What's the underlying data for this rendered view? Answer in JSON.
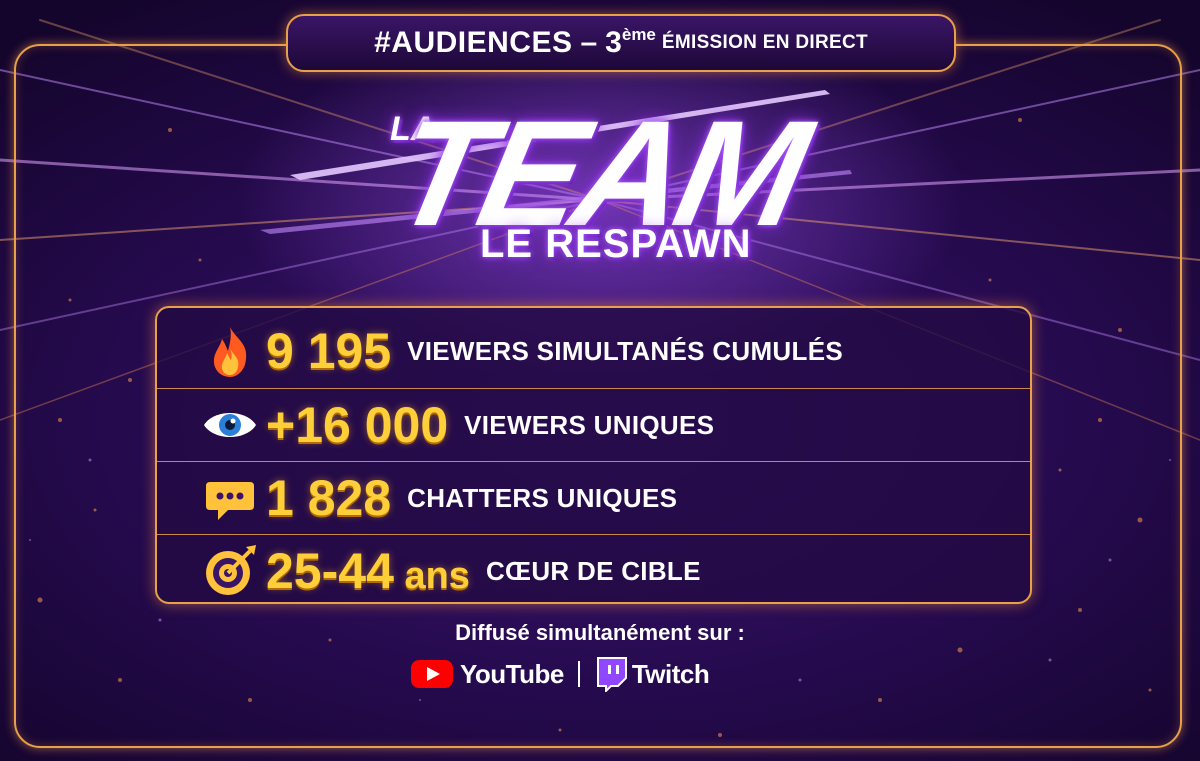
{
  "header": {
    "hashtag": "#AUDIENCES",
    "dash": "–",
    "episode_number": "3",
    "episode_suffix": "ème",
    "subtitle": "ÉMISSION EN DIRECT"
  },
  "logo": {
    "top_word": "LA",
    "main_word": "TEAM",
    "sub_word": "LE RESPAWN"
  },
  "stats": [
    {
      "icon": "fire-icon",
      "value": "9 195",
      "unit": "",
      "label": "VIEWERS SIMULTANÉS CUMULÉS"
    },
    {
      "icon": "eye-icon",
      "value": "+16 000",
      "unit": "",
      "label": "VIEWERS UNIQUES"
    },
    {
      "icon": "speech-bubble-icon",
      "value": "1 828",
      "unit": "",
      "label": "CHATTERS UNIQUES"
    },
    {
      "icon": "target-icon",
      "value": "25-44",
      "unit": " ans",
      "label": "CŒUR DE CIBLE"
    }
  ],
  "broadcast": {
    "intro": "Diffusé simultanément sur :",
    "platforms": [
      {
        "name": "YouTube",
        "icon": "youtube-icon",
        "color": "#ff0000"
      },
      {
        "name": "Twitch",
        "icon": "twitch-icon",
        "color": "#9146ff"
      }
    ]
  },
  "colors": {
    "accent_gold": "#ffcf3a",
    "frame_orange": "#e8a04a",
    "background_purple": "#2a0c55"
  }
}
